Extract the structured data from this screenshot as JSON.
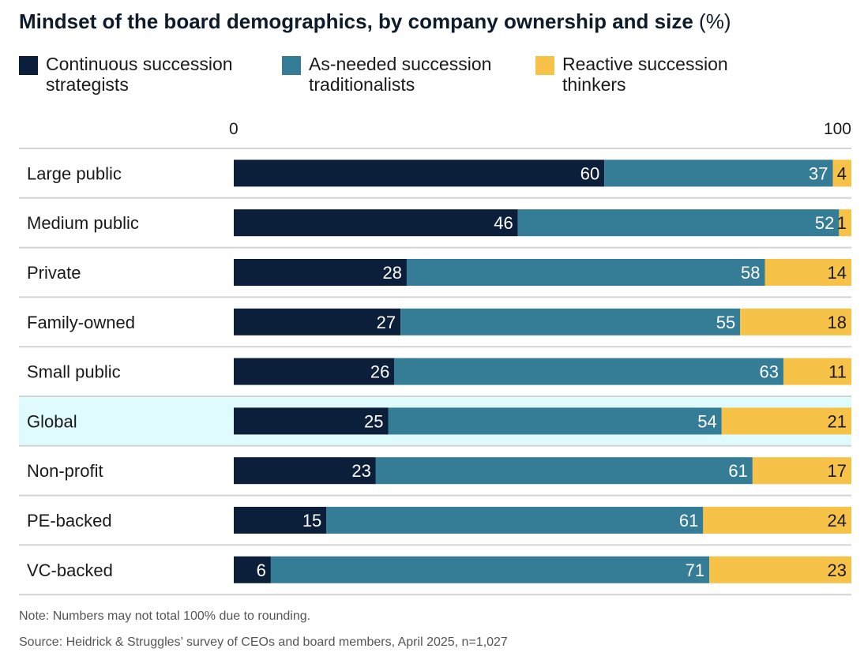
{
  "title": "Mindset of the board demographics, by company ownership and size",
  "title_unit": "(%)",
  "legend": [
    {
      "line1": "Continuous succession",
      "line2": "strategists",
      "color": "#0c1f3a"
    },
    {
      "line1": "As-needed succession",
      "line2": "traditionalists",
      "color": "#357c96"
    },
    {
      "line1": "Reactive succession",
      "line2": "thinkers",
      "color": "#f6c247"
    }
  ],
  "notes": {
    "note": "Note: Numbers may not total 100% due to rounding.",
    "source": "Source: Heidrick & Struggles’ survey of CEOs and board members, April 2025, n=1,027"
  },
  "chart_data": {
    "type": "bar",
    "orientation": "horizontal",
    "stacked": true,
    "title": "Mindset of the board demographics, by company ownership and size (%)",
    "xlim": [
      0,
      100
    ],
    "x_ticks": [
      "0",
      "100"
    ],
    "categories": [
      "Large public",
      "Medium public",
      "Private",
      "Family-owned",
      "Small public",
      "Global",
      "Non-profit",
      "PE-backed",
      "VC-backed"
    ],
    "highlight_category": "Global",
    "highlight_color": "#dffbfd",
    "series": [
      {
        "name": "Continuous succession strategists",
        "color": "#0c1f3a",
        "label_color": "#ffffff",
        "values": [
          60,
          46,
          28,
          27,
          26,
          25,
          23,
          15,
          6
        ]
      },
      {
        "name": "As-needed succession traditionalists",
        "color": "#357c96",
        "label_color": "#ffffff",
        "values": [
          37,
          52,
          58,
          55,
          63,
          54,
          61,
          61,
          71
        ]
      },
      {
        "name": "Reactive succession thinkers",
        "color": "#f6c247",
        "label_color": "#1a1a1a",
        "values": [
          4,
          1,
          14,
          18,
          11,
          21,
          17,
          24,
          23
        ]
      }
    ]
  }
}
